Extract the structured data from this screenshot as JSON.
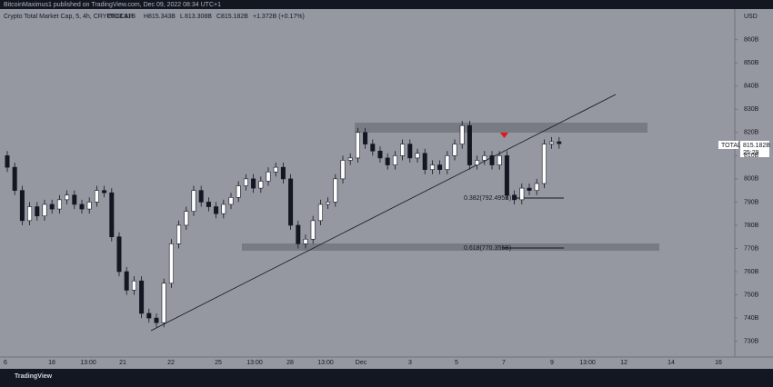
{
  "header": {
    "publisher": "BitcoinMaximus1 published on TradingView.com, Dec 09, 2022 08:34 UTC+1"
  },
  "chart_data": {
    "type": "candlestick",
    "title": "Crypto Total Market Cap, 5, 4h, CRYPTOCAP",
    "ohlc_legend": [
      {
        "key": "O",
        "text": "813.81B"
      },
      {
        "key": "H",
        "text": "815.343B"
      },
      {
        "key": "L",
        "text": "813.308B"
      },
      {
        "key": "C",
        "text": "815.182B"
      }
    ],
    "change": "+1.372B (+0.17%)",
    "currency": "USD",
    "open": [
      810,
      805,
      795,
      782,
      788,
      784,
      789,
      787,
      791,
      793,
      789,
      787,
      790,
      795,
      794,
      775,
      760,
      752,
      756,
      742,
      740,
      738,
      755,
      772,
      780,
      786,
      795,
      790,
      788,
      785,
      789,
      792,
      797,
      800,
      796,
      799,
      803,
      805,
      800,
      780,
      772,
      774,
      782,
      789,
      790,
      800,
      808,
      809,
      820,
      815,
      812,
      809,
      806,
      810,
      815,
      809,
      811,
      804,
      806,
      804,
      810,
      815,
      823,
      806,
      808,
      810,
      806,
      810,
      793,
      791,
      796,
      795,
      798,
      815,
      816
    ],
    "high": [
      812,
      807,
      797,
      790,
      790,
      791,
      791,
      793,
      795,
      795,
      791,
      792,
      797,
      797,
      796,
      777,
      762,
      758,
      758,
      744,
      742,
      757,
      774,
      782,
      788,
      797,
      797,
      792,
      790,
      791,
      794,
      799,
      802,
      802,
      801,
      805,
      807,
      807,
      802,
      782,
      776,
      784,
      791,
      792,
      802,
      810,
      811,
      822,
      822,
      817,
      814,
      811,
      812,
      817,
      817,
      813,
      813,
      808,
      808,
      812,
      817,
      825,
      825,
      810,
      812,
      812,
      812,
      812,
      795,
      798,
      798,
      800,
      817,
      818,
      818
    ],
    "low": [
      803,
      793,
      780,
      780,
      782,
      782,
      785,
      785,
      789,
      787,
      785,
      785,
      788,
      792,
      773,
      758,
      750,
      750,
      740,
      738,
      736,
      736,
      753,
      770,
      778,
      784,
      788,
      786,
      783,
      783,
      787,
      790,
      795,
      794,
      794,
      797,
      801,
      798,
      778,
      770,
      770,
      772,
      780,
      787,
      788,
      798,
      806,
      807,
      813,
      810,
      807,
      804,
      804,
      808,
      807,
      807,
      802,
      802,
      802,
      802,
      808,
      813,
      804,
      804,
      806,
      804,
      804,
      791,
      789,
      789,
      793,
      793,
      796,
      813,
      813
    ],
    "close": [
      805,
      795,
      782,
      788,
      784,
      789,
      787,
      791,
      793,
      789,
      787,
      790,
      795,
      794,
      775,
      760,
      752,
      756,
      742,
      740,
      738,
      755,
      772,
      780,
      786,
      795,
      790,
      788,
      785,
      789,
      792,
      797,
      800,
      796,
      799,
      803,
      805,
      800,
      780,
      772,
      774,
      782,
      789,
      790,
      800,
      808,
      809,
      820,
      815,
      812,
      809,
      806,
      810,
      815,
      809,
      811,
      804,
      806,
      804,
      810,
      815,
      823,
      806,
      808,
      810,
      806,
      810,
      793,
      791,
      796,
      795,
      798,
      815,
      816,
      815.2
    ],
    "ylim": [
      722.4,
      873.2
    ],
    "yticks": [
      {
        "value": 860,
        "label": "860B"
      },
      {
        "value": 850,
        "label": "850B"
      },
      {
        "value": 840,
        "label": "840B"
      },
      {
        "value": 830,
        "label": "830B"
      },
      {
        "value": 820,
        "label": "820B"
      },
      {
        "value": 810,
        "label": "810B"
      },
      {
        "value": 800,
        "label": "800B"
      },
      {
        "value": 790,
        "label": "790B"
      },
      {
        "value": 780,
        "label": "780B"
      },
      {
        "value": 770,
        "label": "770B"
      },
      {
        "value": 760,
        "label": "760B"
      },
      {
        "value": 750,
        "label": "750B"
      },
      {
        "value": 740,
        "label": "740B"
      },
      {
        "value": 730,
        "label": "730B"
      }
    ],
    "xticks": [
      "6",
      "18",
      "13:00",
      "21",
      "22",
      "25",
      "13:00",
      "28",
      "13:00",
      "Dec",
      "3",
      "5",
      "7",
      "9",
      "13:00",
      "12",
      "14",
      "16"
    ],
    "annotations": {
      "fib_382": "0.382(792.495B)",
      "fib_618": "0.618(770.355B)",
      "symbol": "TOTAL",
      "last_price": "815.182B",
      "countdown": "25:29"
    },
    "footer": "TradingView"
  }
}
